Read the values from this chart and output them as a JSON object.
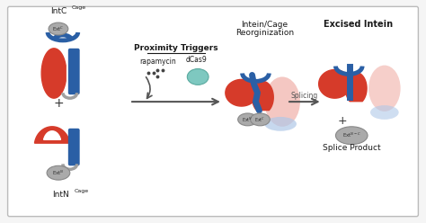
{
  "background_color": "#f5f5f5",
  "border_color": "#cccccc",
  "red_color": "#d63b2a",
  "blue_color": "#2a5fa5",
  "gray_color": "#a0a0a0",
  "light_red": "#f0b0a8",
  "light_blue": "#b0c8e8",
  "text_color": "#1a1a1a",
  "arrow_color": "#555555",
  "label_proximity": "Proximity Triggers",
  "label_rapamycin": "rapamycin",
  "label_dcas9": "dCas9",
  "label_reorg_1": "Intein/Cage",
  "label_reorg_2": "Reorginization",
  "label_excised": "Excised Intein",
  "label_splicing": "Splicing",
  "label_splice_product": "Splice Product",
  "label_intC": "IntC",
  "label_intN": "IntN",
  "label_cage": "Cage"
}
